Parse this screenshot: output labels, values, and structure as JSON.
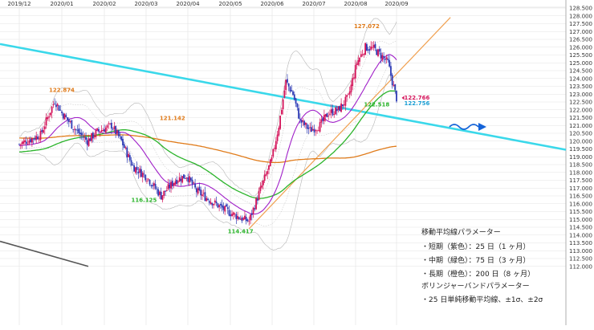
{
  "chart_data": {
    "type": "candlestick",
    "title": "",
    "xlabel": "",
    "ylabel": "",
    "ylim": [
      112.0,
      128.7
    ],
    "y_ticks": [
      112.0,
      112.5,
      113.0,
      113.5,
      114.0,
      114.5,
      115.0,
      115.5,
      116.0,
      116.5,
      117.0,
      117.5,
      118.0,
      118.5,
      119.0,
      119.5,
      120.0,
      120.5,
      121.0,
      121.5,
      122.0,
      122.5,
      123.0,
      123.5,
      124.0,
      124.5,
      125.0,
      125.5,
      126.0,
      126.5,
      127.0,
      127.5,
      128.0,
      128.5
    ],
    "x_labels": [
      "2019/12",
      "2020/01",
      "2020/02",
      "2020/03",
      "2020/04",
      "2020/05",
      "2020/06",
      "2020/07",
      "2020/08",
      "2020/09"
    ],
    "grid": true,
    "candle_colors": {
      "up": "#d4145a",
      "down": "#2e3bb5"
    },
    "series": [
      {
        "name": "SMA25",
        "color": "#a020c8"
      },
      {
        "name": "SMA75",
        "color": "#2bb42b"
      },
      {
        "name": "SMA200",
        "color": "#e07b1a"
      }
    ],
    "price_labels": [
      {
        "text": "122.874",
        "value": 122.874,
        "color": "#e07b1a"
      },
      {
        "text": "121.142",
        "value": 121.142,
        "color": "#e07b1a"
      },
      {
        "text": "116.125",
        "value": 116.125,
        "color": "#2bb42b"
      },
      {
        "text": "114.417",
        "value": 114.417,
        "color": "#2bb42b"
      },
      {
        "text": "127.072",
        "value": 127.072,
        "color": "#e07b1a"
      },
      {
        "text": "122.766",
        "value": 122.766,
        "color": "#d4145a"
      },
      {
        "text": "122.756",
        "value": 122.756,
        "color": "#1a9fd4"
      },
      {
        "text": "122.518",
        "value": 122.518,
        "color": "#2bb42b"
      }
    ]
  },
  "colors": {
    "trendline_cyan": "#3ad8ea",
    "trendline_orange": "#f0a050",
    "arrow": "#1463d8"
  },
  "notes": {
    "title": "移動平均線パラメーター",
    "short": "・短期（紫色）：25 日（1 ヶ月）",
    "mid": "・中期（緑色）：75 日（3 ヶ月）",
    "long": "・長期（橙色）：200 日（8 ヶ月）",
    "bb_title": "ボリンジャーバンドパラメーター",
    "bb_desc": "・25 日単純移動平均線、±1σ、±2σ"
  }
}
